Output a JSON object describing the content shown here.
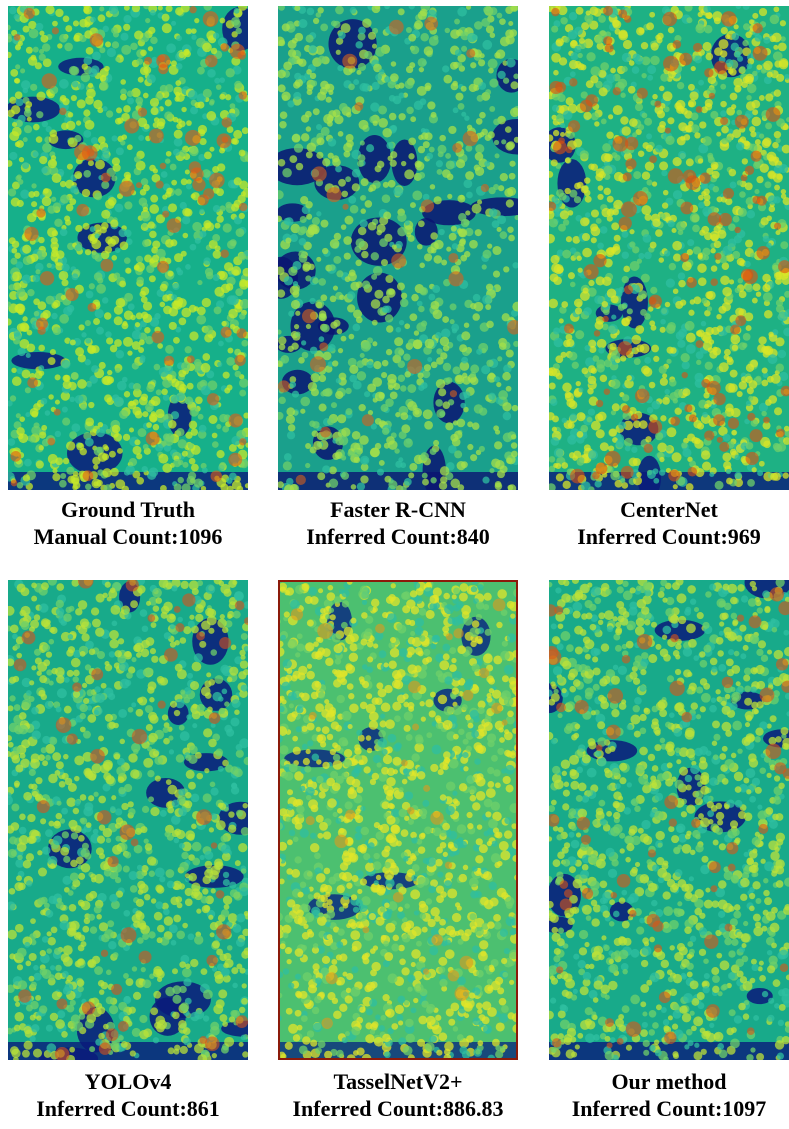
{
  "panels": [
    {
      "title": "Ground Truth",
      "count": "Manual Count:1096",
      "palette": {
        "dark": "#0a1a7a",
        "mid": "#16b08a",
        "hi": "#c6e82a",
        "hot": "#e65a12"
      }
    },
    {
      "title": "Faster R-CNN",
      "count": "Inferred Count:840",
      "palette": {
        "dark": "#0b1472",
        "mid": "#1aa08c",
        "hi": "#a6e04a",
        "hot": "#d8601a"
      }
    },
    {
      "title": "CenterNet",
      "count": "Inferred Count:969",
      "palette": {
        "dark": "#0a1a7a",
        "mid": "#1eb184",
        "hi": "#d8e628",
        "hot": "#e0500e"
      }
    },
    {
      "title": "YOLOv4",
      "count": "Inferred Count:861",
      "palette": {
        "dark": "#0a1a7a",
        "mid": "#18aa8a",
        "hi": "#b8e23a",
        "hot": "#d8521a"
      }
    },
    {
      "title": "TasselNetV2+",
      "count": "Inferred Count:886.83",
      "palette": {
        "dark": "#0a2a80",
        "mid": "#4cc070",
        "hi": "#e0e62a",
        "hot": "#e09a1a"
      }
    },
    {
      "title": "Our method",
      "count": "Inferred Count:1097",
      "palette": {
        "dark": "#0a1a7a",
        "mid": "#18aa8a",
        "hi": "#bce23a",
        "hot": "#dc5516"
      }
    }
  ]
}
